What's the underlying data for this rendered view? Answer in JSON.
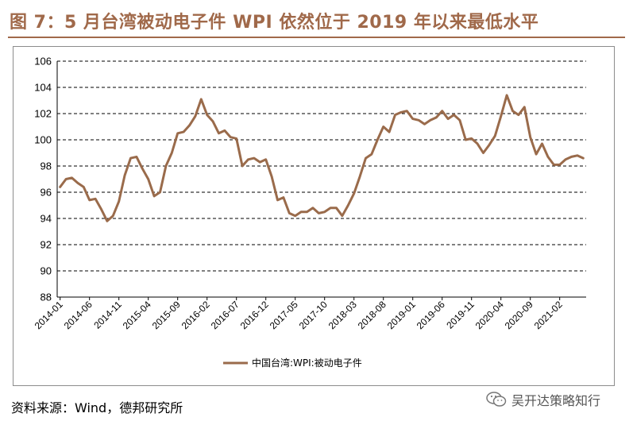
{
  "figure": {
    "title": "图 7：5 月台湾被动电子件 WPI 依然位于 2019 年以来最低水平",
    "source": "资料来源：Wind，德邦研究所",
    "watermark": "吴开达策略知行"
  },
  "colors": {
    "series": "#9a6b4b",
    "title": "#a0694a",
    "grid": "#000000"
  },
  "chart_data": {
    "type": "line",
    "title": "",
    "xlabel": "",
    "ylabel": "",
    "ylim": [
      88,
      106
    ],
    "yticks": [
      88,
      90,
      92,
      94,
      96,
      98,
      100,
      102,
      104,
      106
    ],
    "grid": "horizontal-dashed",
    "legend_position": "bottom-center",
    "x_tick_labels": [
      "2014-01",
      "2014-06",
      "2014-11",
      "2015-04",
      "2015-09",
      "2016-02",
      "2016-07",
      "2016-12",
      "2017-05",
      "2017-10",
      "2018-03",
      "2018-08",
      "2019-01",
      "2019-06",
      "2019-11",
      "2020-04",
      "2020-09",
      "2021-02"
    ],
    "x_tick_step_months": 5,
    "x_start": "2014-01",
    "series": [
      {
        "name": "中国台湾:WPI:被动电子件",
        "values": [
          96.4,
          97.0,
          97.1,
          96.7,
          96.4,
          95.4,
          95.5,
          94.7,
          93.8,
          94.2,
          95.3,
          97.3,
          98.6,
          98.7,
          97.8,
          97.0,
          95.7,
          96.0,
          98.0,
          99.0,
          100.5,
          100.6,
          101.1,
          101.8,
          103.1,
          101.9,
          101.4,
          100.5,
          100.7,
          100.2,
          100.1,
          98.0,
          98.5,
          98.6,
          98.3,
          98.5,
          97.2,
          95.4,
          95.6,
          94.4,
          94.2,
          94.5,
          94.5,
          94.8,
          94.4,
          94.5,
          94.8,
          94.8,
          94.2,
          95.0,
          95.9,
          97.2,
          98.6,
          98.9,
          100.0,
          101.0,
          100.6,
          101.9,
          102.1,
          102.2,
          101.6,
          101.5,
          101.2,
          101.5,
          101.7,
          102.2,
          101.6,
          101.9,
          101.5,
          100.0,
          100.1,
          99.7,
          99.0,
          99.6,
          100.3,
          101.8,
          103.4,
          102.2,
          101.9,
          102.5,
          100.2,
          98.9,
          99.7,
          98.7,
          98.1,
          98.1,
          98.5,
          98.7,
          98.8,
          98.6
        ]
      }
    ]
  }
}
